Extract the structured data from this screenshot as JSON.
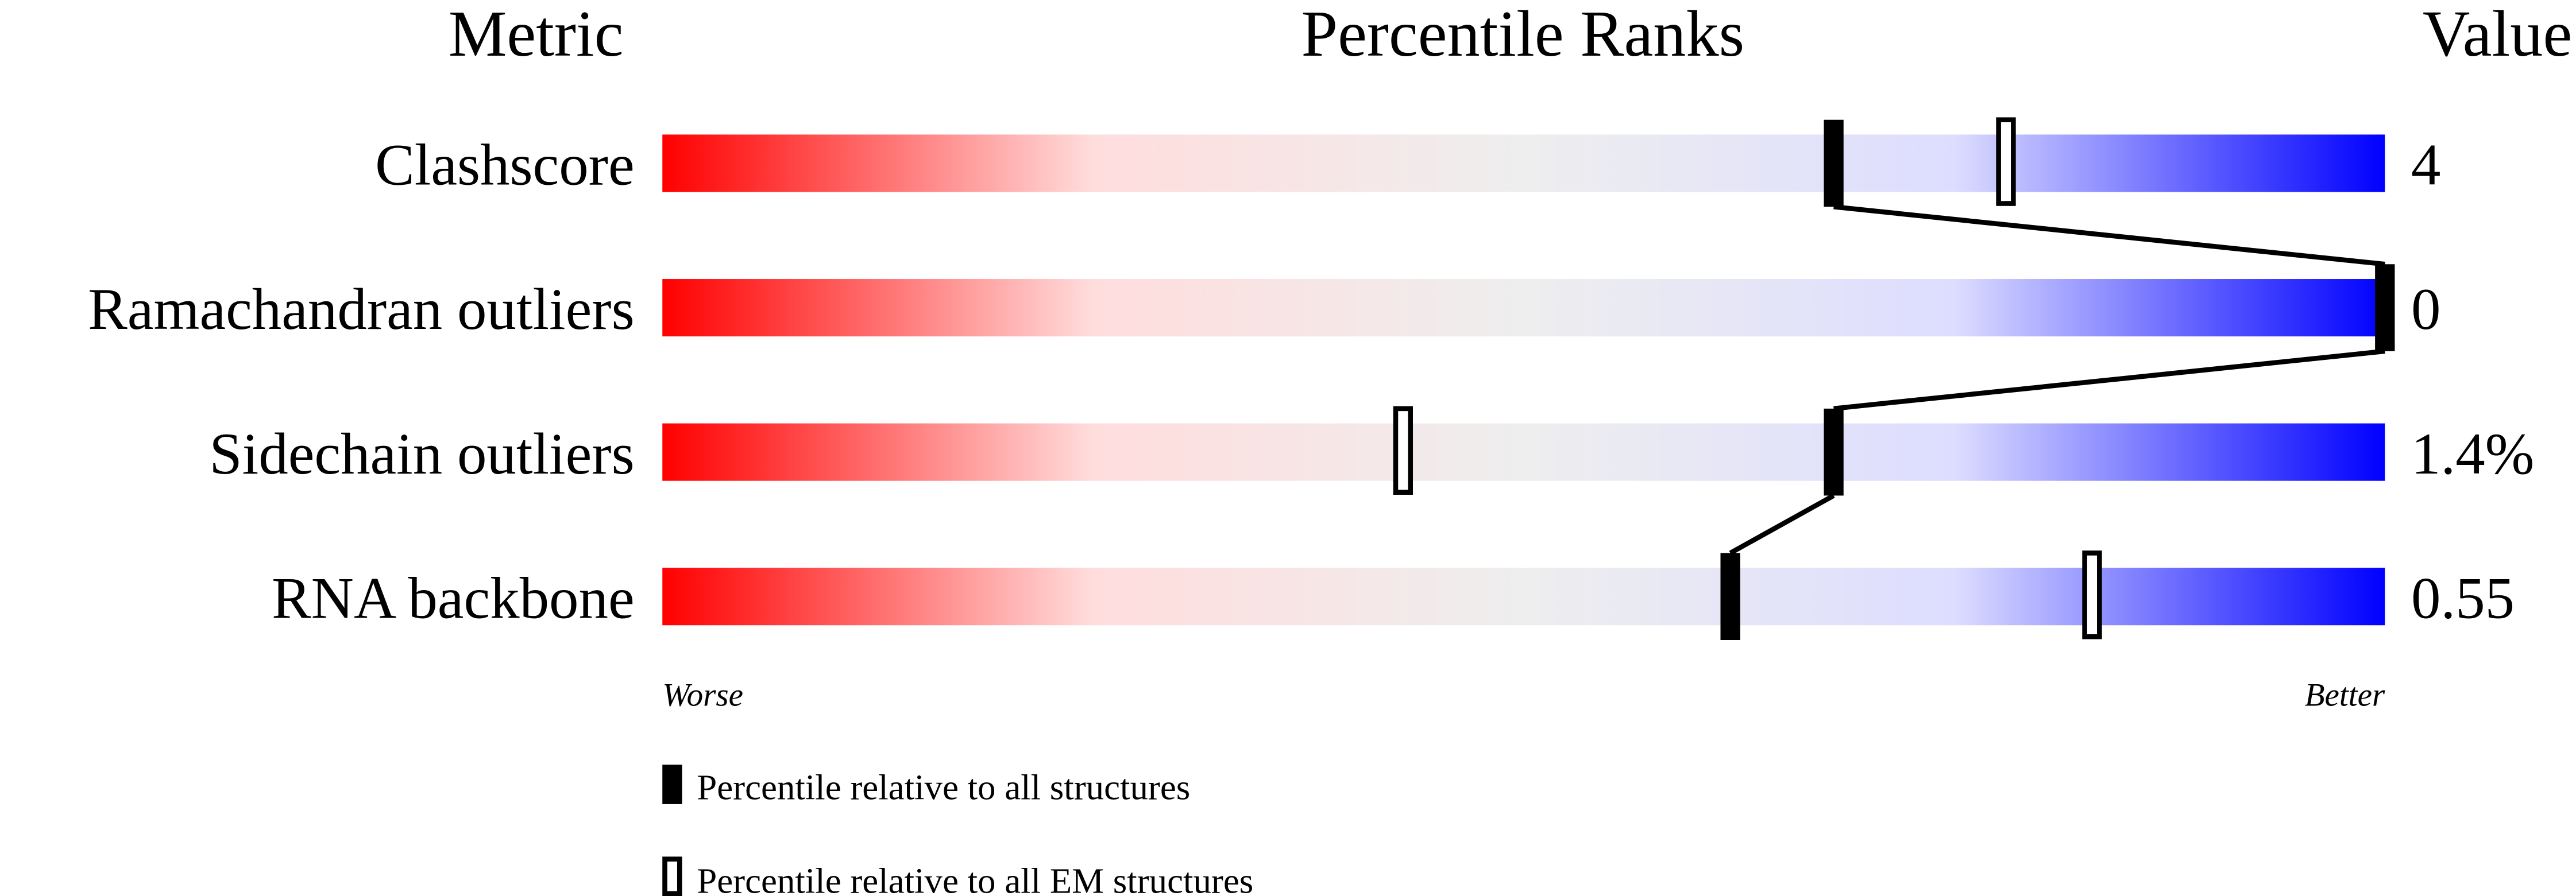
{
  "chart_data": {
    "type": "percentile-slider",
    "headers": {
      "metric": "Metric",
      "ranks": "Percentile Ranks",
      "value": "Value"
    },
    "axis": {
      "left": "Worse",
      "right": "Better",
      "range": [
        0,
        100
      ]
    },
    "gradient_colors": [
      "#ff0000",
      "#ffdddd",
      "#eeeeee",
      "#ddddff",
      "#0000ff"
    ],
    "metrics": [
      {
        "name": "Clashscore",
        "value": "4",
        "percentile_all": 68,
        "percentile_em": 78
      },
      {
        "name": "Ramachandran outliers",
        "value": "0",
        "percentile_all": 100,
        "percentile_em": 100
      },
      {
        "name": "Sidechain outliers",
        "value": "1.4%",
        "percentile_all": 68,
        "percentile_em": 43
      },
      {
        "name": "RNA backbone",
        "value": "0.55",
        "percentile_all": 62,
        "percentile_em": 83
      }
    ],
    "legend": [
      {
        "marker": "filled",
        "label": "Percentile relative to all structures"
      },
      {
        "marker": "open",
        "label": "Percentile relative to all EM structures"
      }
    ]
  }
}
